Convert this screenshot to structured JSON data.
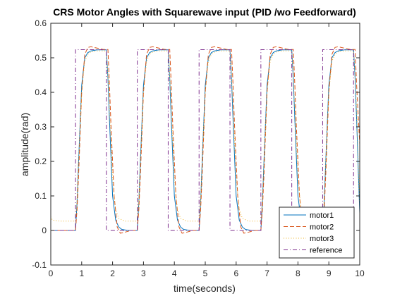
{
  "chart_data": {
    "type": "line",
    "title": "CRS Motor Angles with Squarewave input (PID /wo Feedforward)",
    "xlabel": "time(seconds)",
    "ylabel": "amplitude(rad)",
    "xlim": [
      0,
      10
    ],
    "ylim": [
      -0.1,
      0.6
    ],
    "xticks": [
      0,
      1,
      2,
      3,
      4,
      5,
      6,
      7,
      8,
      9,
      10
    ],
    "yticks": [
      -0.1,
      0,
      0.1,
      0.2,
      0.3,
      0.4,
      0.5,
      0.6
    ],
    "xtick_labels": [
      "0",
      "1",
      "2",
      "3",
      "4",
      "5",
      "6",
      "7",
      "8",
      "9",
      "10"
    ],
    "ytick_labels": [
      "-0.1",
      "0",
      "0.1",
      "0.2",
      "0.3",
      "0.4",
      "0.5",
      "0.6"
    ],
    "grid": false,
    "legend_position": "bottom-right",
    "series": [
      {
        "name": "motor1",
        "color": "#0072BD",
        "dash": "solid",
        "x": [
          0,
          0.8,
          0.85,
          0.9,
          1.0,
          1.1,
          1.2,
          1.3,
          1.5,
          1.8,
          1.85,
          1.9,
          2.0,
          2.1,
          2.2,
          2.3,
          2.5,
          2.8,
          2.85,
          2.9,
          3.0,
          3.1,
          3.2,
          3.3,
          3.5,
          3.8,
          3.85,
          3.9,
          4.0,
          4.1,
          4.2,
          4.3,
          4.5,
          4.8,
          4.85,
          4.9,
          5.0,
          5.1,
          5.2,
          5.3,
          5.5,
          5.8,
          5.85,
          5.9,
          6.0,
          6.1,
          6.2,
          6.3,
          6.5,
          6.8,
          6.85,
          6.9,
          7.0,
          7.1,
          7.2,
          7.3,
          7.5,
          7.8,
          7.85,
          7.9,
          8.0,
          8.1,
          8.2,
          8.3,
          8.5,
          8.8,
          8.85,
          8.9,
          9.0,
          9.1,
          9.2,
          9.3,
          9.5,
          9.8,
          9.85,
          9.9,
          10.0
        ],
        "y": [
          0.0,
          0.0,
          0.08,
          0.2,
          0.42,
          0.5,
          0.515,
          0.52,
          0.523,
          0.523,
          0.44,
          0.32,
          0.1,
          0.03,
          0.01,
          0.003,
          0.0,
          0.0,
          0.08,
          0.2,
          0.42,
          0.5,
          0.515,
          0.52,
          0.523,
          0.523,
          0.44,
          0.32,
          0.1,
          0.03,
          0.01,
          0.003,
          0.0,
          0.0,
          0.08,
          0.2,
          0.42,
          0.5,
          0.515,
          0.52,
          0.523,
          0.523,
          0.44,
          0.32,
          0.1,
          0.03,
          0.01,
          0.003,
          0.0,
          0.0,
          0.08,
          0.2,
          0.42,
          0.5,
          0.515,
          0.52,
          0.523,
          0.523,
          0.44,
          0.32,
          0.1,
          0.03,
          0.01,
          0.003,
          0.0,
          0.0,
          0.08,
          0.2,
          0.42,
          0.5,
          0.515,
          0.52,
          0.523,
          0.523,
          0.44,
          0.32,
          0.05
        ]
      },
      {
        "name": "motor2",
        "color": "#D95319",
        "dash": "dashed",
        "x": [
          0,
          0.8,
          0.85,
          0.9,
          1.0,
          1.1,
          1.2,
          1.3,
          1.5,
          1.7,
          1.85,
          1.9,
          1.95,
          2.05,
          2.15,
          2.25,
          2.4,
          2.6,
          2.8,
          2.85,
          2.9,
          3.0,
          3.1,
          3.2,
          3.3,
          3.5,
          3.7,
          3.85,
          3.9,
          3.95,
          4.05,
          4.15,
          4.25,
          4.4,
          4.6,
          4.8,
          4.85,
          4.9,
          5.0,
          5.1,
          5.2,
          5.3,
          5.5,
          5.7,
          5.85,
          5.9,
          5.95,
          6.05,
          6.15,
          6.25,
          6.4,
          6.6,
          6.8,
          6.85,
          6.9,
          7.0,
          7.1,
          7.2,
          7.3,
          7.5,
          7.7,
          7.85,
          7.9,
          7.95,
          8.05,
          8.15,
          8.25,
          8.4,
          8.6,
          8.8,
          8.85,
          8.9,
          9.0,
          9.1,
          9.2,
          9.3,
          9.5,
          9.7,
          9.85,
          9.9,
          10.0
        ],
        "y": [
          0.0,
          0.0,
          0.06,
          0.16,
          0.4,
          0.51,
          0.53,
          0.532,
          0.528,
          0.524,
          0.524,
          0.42,
          0.3,
          0.1,
          0.01,
          -0.008,
          -0.005,
          0.0,
          0.0,
          0.06,
          0.16,
          0.4,
          0.51,
          0.53,
          0.532,
          0.528,
          0.524,
          0.524,
          0.42,
          0.3,
          0.1,
          0.01,
          -0.008,
          -0.005,
          0.0,
          0.0,
          0.06,
          0.16,
          0.4,
          0.51,
          0.53,
          0.532,
          0.528,
          0.524,
          0.524,
          0.42,
          0.3,
          0.1,
          0.01,
          -0.008,
          -0.005,
          0.0,
          0.0,
          0.06,
          0.16,
          0.4,
          0.51,
          0.53,
          0.532,
          0.528,
          0.524,
          0.524,
          0.42,
          0.3,
          0.1,
          0.01,
          -0.008,
          -0.005,
          0.0,
          0.0,
          0.06,
          0.16,
          0.4,
          0.51,
          0.53,
          0.532,
          0.528,
          0.524,
          0.524,
          0.42,
          0.25
        ]
      },
      {
        "name": "motor3",
        "color": "#EDB120",
        "dash": "dotted",
        "x": [
          0,
          0.05,
          0.3,
          0.8,
          0.85,
          0.9,
          1.0,
          1.1,
          1.2,
          1.3,
          1.5,
          1.8,
          1.85,
          1.9,
          2.0,
          2.1,
          2.2,
          2.4,
          2.8,
          2.85,
          2.9,
          3.0,
          3.1,
          3.2,
          3.3,
          3.5,
          3.8,
          3.85,
          3.9,
          4.0,
          4.1,
          4.2,
          4.4,
          4.8,
          4.85,
          4.9,
          5.0,
          5.1,
          5.2,
          5.3,
          5.5,
          5.8,
          5.85,
          5.9,
          6.0,
          6.1,
          6.2,
          6.4,
          6.8,
          6.85,
          6.9,
          7.0,
          7.1,
          7.2,
          7.3,
          7.5,
          7.8,
          7.85,
          7.9,
          8.0,
          8.1,
          8.2,
          8.4,
          8.8,
          8.85,
          8.9,
          9.0,
          9.1,
          9.2,
          9.3,
          9.5,
          9.8,
          9.85,
          9.9,
          10.0
        ],
        "y": [
          0.04,
          0.03,
          0.027,
          0.027,
          0.09,
          0.2,
          0.4,
          0.49,
          0.51,
          0.517,
          0.52,
          0.52,
          0.45,
          0.35,
          0.15,
          0.06,
          0.035,
          0.027,
          0.027,
          0.09,
          0.2,
          0.4,
          0.49,
          0.51,
          0.517,
          0.52,
          0.52,
          0.45,
          0.35,
          0.15,
          0.06,
          0.035,
          0.027,
          0.027,
          0.09,
          0.2,
          0.4,
          0.49,
          0.51,
          0.517,
          0.52,
          0.52,
          0.45,
          0.35,
          0.15,
          0.06,
          0.035,
          0.027,
          0.027,
          0.09,
          0.2,
          0.4,
          0.49,
          0.51,
          0.517,
          0.52,
          0.52,
          0.45,
          0.35,
          0.15,
          0.06,
          0.035,
          0.027,
          0.027,
          0.09,
          0.2,
          0.4,
          0.49,
          0.51,
          0.517,
          0.52,
          0.52,
          0.45,
          0.35,
          0.07
        ]
      },
      {
        "name": "reference",
        "color": "#7E2F8E",
        "dash": "dashdot",
        "x": [
          0,
          0.8,
          0.8,
          1.8,
          1.8,
          2.8,
          2.8,
          3.8,
          3.8,
          4.8,
          4.8,
          5.8,
          5.8,
          6.8,
          6.8,
          7.8,
          7.8,
          8.8,
          8.8,
          9.8,
          9.8,
          10.0
        ],
        "y": [
          0,
          0,
          0.5236,
          0.5236,
          0,
          0,
          0.5236,
          0.5236,
          0,
          0,
          0.5236,
          0.5236,
          0,
          0,
          0.5236,
          0.5236,
          0,
          0,
          0.5236,
          0.5236,
          0,
          0
        ]
      }
    ]
  }
}
